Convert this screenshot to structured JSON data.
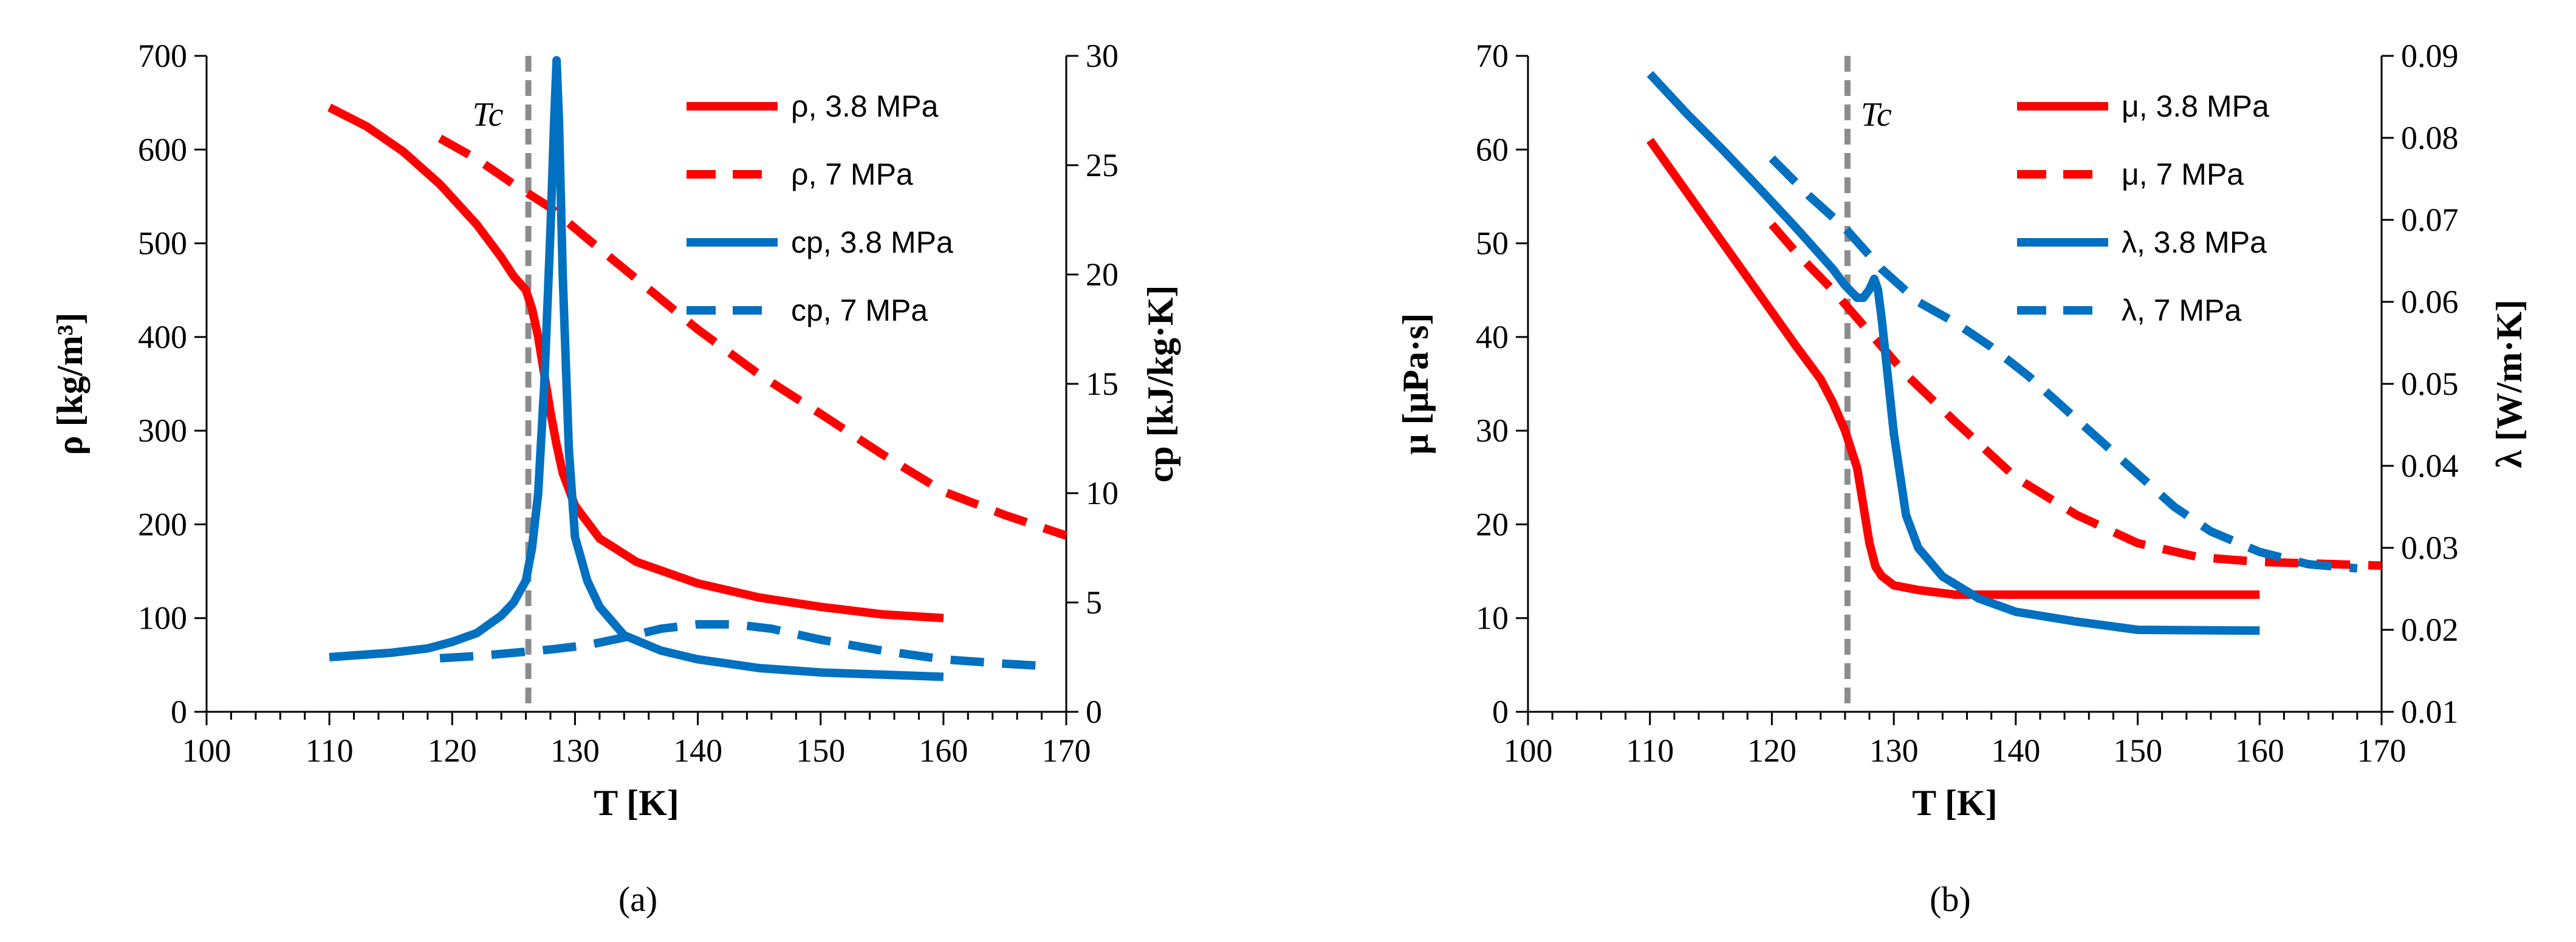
{
  "chart_data": [
    {
      "panel": "(a)",
      "type": "line",
      "xlabel": "T [K]",
      "ylabel": "ρ [kg/m³]",
      "y2label": "cp [kJ/kg·K]",
      "xlim": [
        100,
        170
      ],
      "ylim": [
        0,
        700
      ],
      "y2lim": [
        0,
        30
      ],
      "xticks": [
        "100",
        "110",
        "120",
        "130",
        "140",
        "150",
        "160",
        "170"
      ],
      "yticks": [
        "0",
        "100",
        "200",
        "300",
        "400",
        "500",
        "600",
        "700"
      ],
      "y2ticks": [
        "0",
        "5",
        "10",
        "15",
        "20",
        "25",
        "30"
      ],
      "critical_line": {
        "label": "Tc",
        "x": 126.2
      },
      "legend_position": "top-right",
      "series": [
        {
          "name": "ρ, 3.8 MPa",
          "color": "#ff0000",
          "dash": "solid",
          "axis": "left",
          "x": [
            110,
            113,
            116,
            119,
            122,
            124,
            125,
            126,
            126.5,
            127,
            127.5,
            128,
            128.5,
            129,
            130,
            132,
            135,
            140,
            145,
            150,
            155,
            160
          ],
          "y": [
            645,
            625,
            598,
            563,
            520,
            485,
            465,
            450,
            430,
            400,
            360,
            320,
            285,
            255,
            220,
            185,
            160,
            137,
            122,
            112,
            104,
            100
          ]
        },
        {
          "name": "ρ, 7 MPa",
          "color": "#ff0000",
          "dash": "dashed",
          "axis": "left",
          "x": [
            119,
            122,
            125,
            128,
            131,
            135,
            140,
            145,
            150,
            155,
            160,
            165,
            170
          ],
          "y": [
            612,
            590,
            563,
            538,
            505,
            462,
            408,
            360,
            318,
            275,
            235,
            210,
            188
          ]
        },
        {
          "name": "cp, 3.8 MPa",
          "color": "#0070c0",
          "dash": "solid",
          "axis": "right",
          "x": [
            110,
            115,
            118,
            120,
            122,
            124,
            125,
            126,
            126.5,
            127,
            127.5,
            128,
            128.3,
            128.5,
            128.7,
            129,
            129.5,
            130,
            131,
            132,
            134,
            137,
            140,
            145,
            150,
            155,
            160
          ],
          "y": [
            2.5,
            2.7,
            2.9,
            3.2,
            3.6,
            4.4,
            5.0,
            6.0,
            7.5,
            10.0,
            15.0,
            22.0,
            27.0,
            29.8,
            27.0,
            20.0,
            12.0,
            8.0,
            6.0,
            4.8,
            3.5,
            2.8,
            2.4,
            2.0,
            1.8,
            1.7,
            1.6
          ]
        },
        {
          "name": "cp, 7 MPa",
          "color": "#0070c0",
          "dash": "dashed",
          "axis": "right",
          "x": [
            119,
            122,
            125,
            128,
            131,
            134,
            137,
            140,
            143,
            146,
            150,
            155,
            160,
            165,
            168
          ],
          "y": [
            2.45,
            2.55,
            2.7,
            2.85,
            3.05,
            3.4,
            3.8,
            4.0,
            4.0,
            3.8,
            3.3,
            2.8,
            2.4,
            2.2,
            2.1
          ]
        }
      ]
    },
    {
      "panel": "(b)",
      "type": "line",
      "xlabel": "T [K]",
      "ylabel": "μ [μPa·s]",
      "y2label": "λ [W/m·K]",
      "xlim": [
        100,
        170
      ],
      "ylim": [
        0,
        70
      ],
      "y2lim": [
        0.01,
        0.09
      ],
      "xticks": [
        "100",
        "110",
        "120",
        "130",
        "140",
        "150",
        "160",
        "170"
      ],
      "yticks": [
        "0",
        "10",
        "20",
        "30",
        "40",
        "50",
        "60",
        "70"
      ],
      "y2ticks": [
        "0.01",
        "0.02",
        "0.03",
        "0.04",
        "0.05",
        "0.06",
        "0.07",
        "0.08",
        "0.09"
      ],
      "critical_line": {
        "label": "Tc",
        "x": 126.2
      },
      "legend_position": "top-right",
      "series": [
        {
          "name": "μ, 3.8 MPa",
          "color": "#ff0000",
          "dash": "solid",
          "axis": "left",
          "x": [
            110,
            113,
            116,
            119,
            122,
            124,
            125,
            126,
            127,
            127.5,
            128,
            128.5,
            129,
            130,
            132,
            135,
            140,
            150,
            160
          ],
          "y": [
            61,
            55.5,
            50,
            44.5,
            39,
            35.5,
            33,
            30,
            26,
            22,
            18,
            15.5,
            14.5,
            13.5,
            13,
            12.5,
            12.5,
            12.5,
            12.5
          ]
        },
        {
          "name": "μ, 7 MPa",
          "color": "#ff0000",
          "dash": "dashed",
          "axis": "left",
          "x": [
            120,
            122,
            125,
            128,
            131,
            135,
            140,
            145,
            150,
            155,
            160,
            165,
            170
          ],
          "y": [
            52,
            49,
            45,
            40.5,
            36,
            31,
            25,
            21,
            18,
            16.5,
            16,
            15.8,
            15.6
          ]
        },
        {
          "name": "λ, 3.8 MPa",
          "color": "#0070c0",
          "dash": "solid",
          "axis": "right",
          "x": [
            110,
            113,
            116,
            119,
            122,
            125,
            126,
            127,
            127.5,
            128,
            128.4,
            128.7,
            129,
            130,
            131,
            132,
            134,
            137,
            140,
            145,
            150,
            160
          ],
          "y": [
            0.0878,
            0.083,
            0.0785,
            0.0738,
            0.069,
            0.064,
            0.062,
            0.0605,
            0.0605,
            0.0615,
            0.0628,
            0.0615,
            0.058,
            0.044,
            0.034,
            0.03,
            0.0265,
            0.0238,
            0.0222,
            0.021,
            0.02,
            0.0199
          ]
        },
        {
          "name": "λ, 7 MPa",
          "color": "#0070c0",
          "dash": "dashed",
          "axis": "right",
          "x": [
            120,
            123,
            126,
            129,
            132,
            135,
            138,
            141,
            144,
            147,
            150,
            153,
            156,
            160,
            164,
            168
          ],
          "y": [
            0.0775,
            0.073,
            0.069,
            0.064,
            0.06,
            0.0575,
            0.0545,
            0.051,
            0.047,
            0.043,
            0.039,
            0.035,
            0.032,
            0.0295,
            0.028,
            0.0275
          ]
        }
      ]
    }
  ]
}
